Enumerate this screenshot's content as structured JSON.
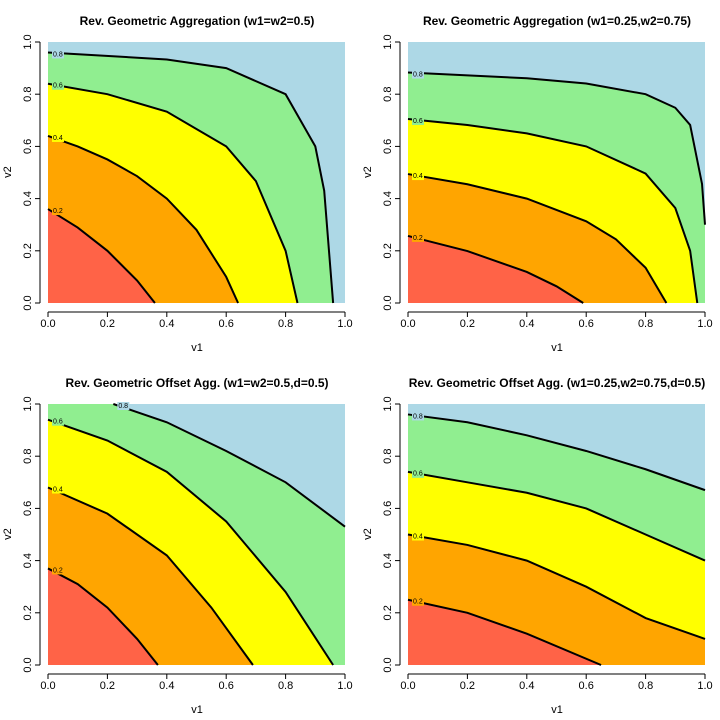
{
  "chart_data": [
    {
      "type": "contour",
      "title": "Rev. Geometric Aggregation (w1=w2=0.5)",
      "x_label": "v1",
      "y_label": "v2",
      "xlim": [
        0,
        1
      ],
      "ylim": [
        0,
        1
      ],
      "xticks": [
        {
          "value": 0,
          "label": "0.0"
        },
        0.2,
        0.4,
        0.6,
        0.8,
        {
          "value": 1,
          "label": "1.0"
        }
      ],
      "yticks": [
        {
          "value": 0,
          "label": "0.0"
        },
        0.2,
        0.4,
        0.6,
        0.8,
        {
          "value": 1,
          "label": "1.0"
        }
      ],
      "colors": [
        "#ff6347",
        "#ffa500",
        "#ffff00",
        "#90ee90",
        "#add8e6"
      ],
      "contours": [
        {
          "level": 0.2,
          "x": [
            0,
            0.1,
            0.2,
            0.3,
            0.36
          ],
          "y": [
            0.36,
            0.289,
            0.2,
            0.086,
            0
          ]
        },
        {
          "level": 0.4,
          "x": [
            0,
            0.1,
            0.2,
            0.3,
            0.4,
            0.5,
            0.6,
            0.64
          ],
          "y": [
            0.64,
            0.6,
            0.55,
            0.486,
            0.4,
            0.28,
            0.1,
            0
          ]
        },
        {
          "level": 0.6,
          "x": [
            0,
            0.2,
            0.4,
            0.6,
            0.7,
            0.8,
            0.84
          ],
          "y": [
            0.84,
            0.8,
            0.733,
            0.6,
            0.467,
            0.2,
            0
          ]
        },
        {
          "level": 0.8,
          "x": [
            0,
            0.4,
            0.6,
            0.8,
            0.9,
            0.93,
            0.96
          ],
          "y": [
            0.96,
            0.933,
            0.9,
            0.8,
            0.6,
            0.43,
            0
          ]
        }
      ]
    },
    {
      "type": "contour",
      "title": "Rev. Geometric Aggregation (w1=0.25,w2=0.75)",
      "x_label": "v1",
      "y_label": "v2",
      "xlim": [
        0,
        1
      ],
      "ylim": [
        0,
        1
      ],
      "xticks": [
        {
          "value": 0,
          "label": "0.0"
        },
        0.2,
        0.4,
        0.6,
        0.8,
        {
          "value": 1,
          "label": "1.0"
        }
      ],
      "yticks": [
        {
          "value": 0,
          "label": "0.0"
        },
        0.2,
        0.4,
        0.6,
        0.8,
        {
          "value": 1,
          "label": "1.0"
        }
      ],
      "colors": [
        "#ff6347",
        "#ffa500",
        "#ffff00",
        "#90ee90",
        "#add8e6"
      ],
      "contours": [
        {
          "level": 0.2,
          "x": [
            0,
            0.2,
            0.4,
            0.5,
            0.59
          ],
          "y": [
            0.257,
            0.199,
            0.119,
            0.064,
            0
          ]
        },
        {
          "level": 0.4,
          "x": [
            0,
            0.2,
            0.4,
            0.6,
            0.7,
            0.8,
            0.87
          ],
          "y": [
            0.494,
            0.455,
            0.4,
            0.313,
            0.244,
            0.135,
            0
          ]
        },
        {
          "level": 0.6,
          "x": [
            0,
            0.2,
            0.4,
            0.6,
            0.8,
            0.9,
            0.95,
            0.974
          ],
          "y": [
            0.705,
            0.682,
            0.65,
            0.6,
            0.496,
            0.364,
            0.2,
            0
          ]
        },
        {
          "level": 0.8,
          "x": [
            0,
            0.4,
            0.6,
            0.8,
            0.9,
            0.95,
            0.99,
            1
          ],
          "y": [
            0.883,
            0.861,
            0.841,
            0.8,
            0.748,
            0.682,
            0.456,
            0.3
          ]
        }
      ]
    },
    {
      "type": "contour",
      "title": "Rev. Geometric Offset Agg. (w1=w2=0.5,d=0.5)",
      "x_label": "v1",
      "y_label": "v2",
      "xlim": [
        0,
        1
      ],
      "ylim": [
        0,
        1
      ],
      "xticks": [
        {
          "value": 0,
          "label": "0.0"
        },
        0.2,
        0.4,
        0.6,
        0.8,
        {
          "value": 1,
          "label": "1.0"
        }
      ],
      "yticks": [
        {
          "value": 0,
          "label": "0.0"
        },
        0.2,
        0.4,
        0.6,
        0.8,
        {
          "value": 1,
          "label": "1.0"
        }
      ],
      "colors": [
        "#ff6347",
        "#ffa500",
        "#ffff00",
        "#90ee90",
        "#add8e6"
      ],
      "contours": [
        {
          "level": 0.2,
          "x": [
            0,
            0.1,
            0.2,
            0.3,
            0.37
          ],
          "y": [
            0.37,
            0.31,
            0.22,
            0.1,
            0
          ]
        },
        {
          "level": 0.4,
          "x": [
            0,
            0.2,
            0.4,
            0.55,
            0.69
          ],
          "y": [
            0.68,
            0.58,
            0.42,
            0.22,
            0
          ]
        },
        {
          "level": 0.6,
          "x": [
            0,
            0.2,
            0.4,
            0.6,
            0.8,
            0.96
          ],
          "y": [
            0.94,
            0.86,
            0.74,
            0.55,
            0.28,
            0
          ]
        },
        {
          "level": 0.8,
          "x": [
            0.22,
            0.4,
            0.6,
            0.8,
            1
          ],
          "y": [
            1,
            0.93,
            0.82,
            0.7,
            0.53
          ]
        }
      ]
    },
    {
      "type": "contour",
      "title": "Rev. Geometric Offset Agg. (w1=0.25,w2=0.75,d=0.5)",
      "x_label": "v1",
      "y_label": "v2",
      "xlim": [
        0,
        1
      ],
      "ylim": [
        0,
        1
      ],
      "xticks": [
        {
          "value": 0,
          "label": "0.0"
        },
        0.2,
        0.4,
        0.6,
        0.8,
        {
          "value": 1,
          "label": "1.0"
        }
      ],
      "yticks": [
        {
          "value": 0,
          "label": "0.0"
        },
        0.2,
        0.4,
        0.6,
        0.8,
        {
          "value": 1,
          "label": "1.0"
        }
      ],
      "colors": [
        "#ff6347",
        "#ffa500",
        "#ffff00",
        "#90ee90",
        "#add8e6"
      ],
      "contours": [
        {
          "level": 0.2,
          "x": [
            0,
            0.2,
            0.4,
            0.65
          ],
          "y": [
            0.25,
            0.2,
            0.12,
            0
          ]
        },
        {
          "level": 0.4,
          "x": [
            0,
            0.2,
            0.4,
            0.6,
            0.8,
            1
          ],
          "y": [
            0.5,
            0.46,
            0.4,
            0.3,
            0.18,
            0.1
          ]
        },
        {
          "level": 0.6,
          "x": [
            0,
            0.2,
            0.4,
            0.6,
            0.8,
            1
          ],
          "y": [
            0.74,
            0.7,
            0.66,
            0.6,
            0.5,
            0.4
          ]
        },
        {
          "level": 0.8,
          "x": [
            0,
            0.2,
            0.4,
            0.6,
            0.8,
            1
          ],
          "y": [
            0.96,
            0.93,
            0.88,
            0.82,
            0.75,
            0.67
          ]
        }
      ]
    }
  ]
}
